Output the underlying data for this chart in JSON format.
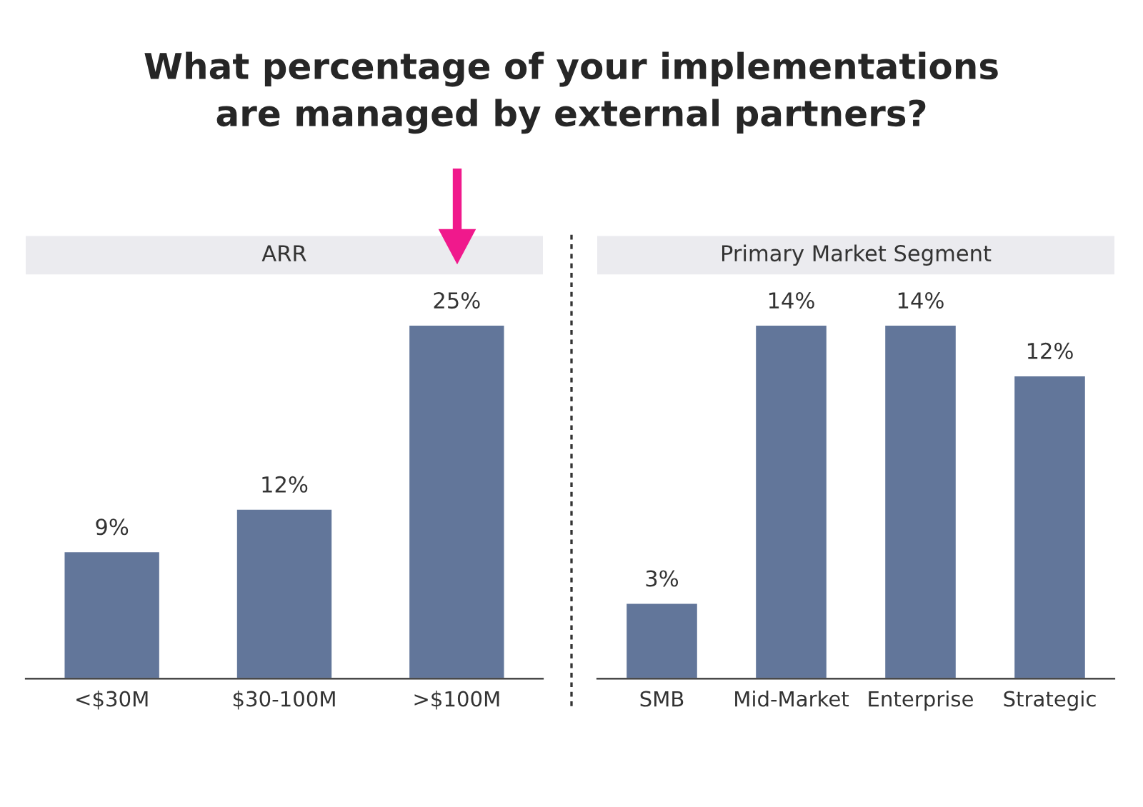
{
  "chart_data": [
    {
      "type": "bar",
      "title": "ARR",
      "annotations": [
        "What percentage of your implementations\nare managed by external partners?"
      ],
      "categories": [
        "<$30M",
        "$30-100M",
        ">$100M"
      ],
      "values": [
        9,
        12,
        25
      ],
      "value_labels": [
        "9%",
        "12%",
        "25%"
      ],
      "color": "#62769a",
      "grid": false,
      "tick_labels": "x"
    },
    {
      "type": "bar",
      "title": "Primary Market Segment",
      "categories": [
        "SMB",
        "Mid-Market",
        "Enterprise",
        "Strategic"
      ],
      "values": [
        3,
        14,
        14,
        12
      ],
      "value_labels": [
        "3%",
        "14%",
        "14%",
        "12%"
      ],
      "color": "#62769a",
      "grid": false,
      "tick_labels": "x"
    }
  ]
}
